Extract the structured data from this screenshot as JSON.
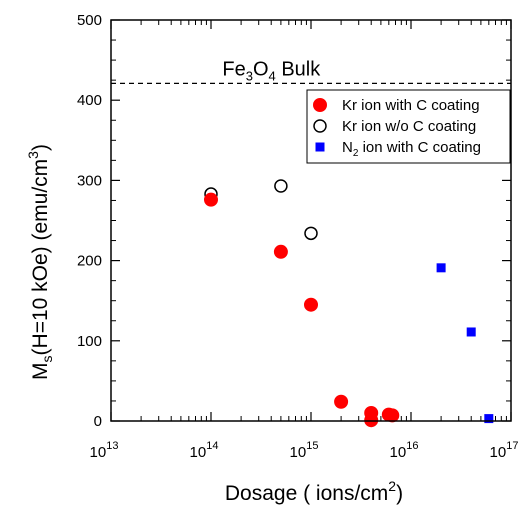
{
  "chart_data": {
    "type": "scatter",
    "x_scale": "log",
    "xlim": [
      10000000000000.0,
      1e+17
    ],
    "ylim": [
      0,
      500
    ],
    "grid": false,
    "legend_position": "top-right",
    "xlabel": {
      "main": "Dosage  ( ions/cm",
      "sup": "2",
      "tail": ")"
    },
    "ylabel": {
      "m": "M",
      "sub": "s",
      "mid": "(H=10 kOe)  (emu/cm",
      "sup": "3",
      "tail": ")"
    },
    "x_ticks": [
      {
        "base": "10",
        "exp": "13",
        "value": 10000000000000.0
      },
      {
        "base": "10",
        "exp": "14",
        "value": 100000000000000.0
      },
      {
        "base": "10",
        "exp": "15",
        "value": 1000000000000000.0
      },
      {
        "base": "10",
        "exp": "16",
        "value": 1e+16
      },
      {
        "base": "10",
        "exp": "17",
        "value": 1e+17
      }
    ],
    "y_ticks": [
      {
        "label": "0",
        "value": 0
      },
      {
        "label": "100",
        "value": 100
      },
      {
        "label": "200",
        "value": 200
      },
      {
        "label": "300",
        "value": 300
      },
      {
        "label": "400",
        "value": 400
      },
      {
        "label": "500",
        "value": 500
      }
    ],
    "reference_line": {
      "y": 421,
      "text_parts": [
        "Fe",
        "3",
        "O",
        "4",
        " Bulk"
      ]
    },
    "series": [
      {
        "name": "Kr ion with C coating",
        "name_parts": [
          "Kr ion with C coating"
        ],
        "marker": "filled-circle",
        "color": "#ff0000",
        "points": [
          {
            "x": 100000000000000.0,
            "y": 276
          },
          {
            "x": 500000000000000.0,
            "y": 211
          },
          {
            "x": 1000000000000000.0,
            "y": 145
          },
          {
            "x": 2000000000000000.0,
            "y": 24
          },
          {
            "x": 4000000000000000.0,
            "y": 10
          },
          {
            "x": 4000000000000000.0,
            "y": 1
          },
          {
            "x": 6000000000000000.0,
            "y": 8
          },
          {
            "x": 6500000000000000.0,
            "y": 7
          }
        ]
      },
      {
        "name": "Kr ion w/o C coating",
        "name_parts": [
          "Kr ion w/o C coating"
        ],
        "marker": "open-circle",
        "color": "#000000",
        "points": [
          {
            "x": 100000000000000.0,
            "y": 283
          },
          {
            "x": 500000000000000.0,
            "y": 293
          },
          {
            "x": 1000000000000000.0,
            "y": 234
          }
        ]
      },
      {
        "name": "N2 ion with C coating",
        "name_parts": [
          "N",
          "2",
          " ion with C coating"
        ],
        "marker": "filled-square",
        "color": "#0000ff",
        "points": [
          {
            "x": 2e+16,
            "y": 191
          },
          {
            "x": 4e+16,
            "y": 111
          },
          {
            "x": 6e+16,
            "y": 3
          }
        ]
      }
    ]
  }
}
